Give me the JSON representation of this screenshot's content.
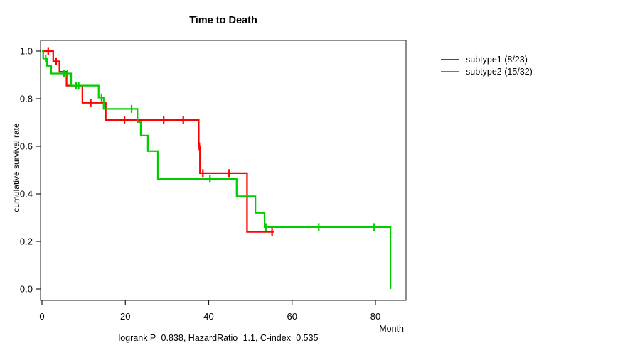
{
  "chart_data": {
    "type": "line",
    "subtype": "kaplan-meier-step-curve",
    "title": "Time to Death",
    "xlabel": "Month",
    "ylabel": "cumulative survival rate",
    "footnote": "logrank P=0.838, HazardRatio=1.1, C-index=0.535",
    "xlim": [
      0,
      87
    ],
    "ylim": [
      0.0,
      1.0
    ],
    "xticks": [
      "0",
      "20",
      "40",
      "60",
      "80"
    ],
    "yticks": [
      "1.0",
      "0.8",
      "0.6",
      "0.4",
      "0.2",
      "0.0"
    ],
    "grid": false,
    "legend_position": "right-outside",
    "axis_color": "#444444",
    "tick_color": "#1a1a1a",
    "text_color": "#000000",
    "background": "#ffffff",
    "series": [
      {
        "id": "subtype1",
        "label": "subtype1 (8/23)",
        "events_over_n": "8/23",
        "color": "#ff0000",
        "steps": [
          [
            0,
            1.0
          ],
          [
            2.7,
            0.957
          ],
          [
            4.2,
            0.913
          ],
          [
            5.9,
            0.855
          ],
          [
            9.7,
            0.783
          ],
          [
            15.3,
            0.71
          ],
          [
            37.6,
            0.6
          ],
          [
            37.9,
            0.487
          ],
          [
            49.2,
            0.24
          ]
        ],
        "end_time": 55.6,
        "censors": [
          [
            1.5,
            1.0
          ],
          [
            3.4,
            0.957
          ],
          [
            11.7,
            0.783
          ],
          [
            19.8,
            0.71
          ],
          [
            29.2,
            0.71
          ],
          [
            33.9,
            0.71
          ],
          [
            37.75,
            0.6
          ],
          [
            38.6,
            0.487
          ],
          [
            44.9,
            0.487
          ],
          [
            55.2,
            0.24
          ]
        ]
      },
      {
        "id": "subtype2",
        "label": "subtype2 (15/32)",
        "events_over_n": "15/32",
        "color": "#00cd00",
        "steps": [
          [
            0,
            1.0
          ],
          [
            0.3,
            0.969
          ],
          [
            1.2,
            0.938
          ],
          [
            2.2,
            0.906
          ],
          [
            7.0,
            0.855
          ],
          [
            13.6,
            0.805
          ],
          [
            14.8,
            0.757
          ],
          [
            22.9,
            0.702
          ],
          [
            23.7,
            0.645
          ],
          [
            25.4,
            0.58
          ],
          [
            27.8,
            0.463
          ],
          [
            46.7,
            0.39
          ],
          [
            51.2,
            0.32
          ],
          [
            53.4,
            0.26
          ],
          [
            83.6,
            0.0
          ]
        ],
        "end_time": 83.6,
        "censors": [
          [
            0.9,
            0.969
          ],
          [
            5.3,
            0.906
          ],
          [
            6.1,
            0.906
          ],
          [
            8.2,
            0.855
          ],
          [
            8.8,
            0.855
          ],
          [
            14.3,
            0.805
          ],
          [
            21.5,
            0.757
          ],
          [
            40.3,
            0.463
          ],
          [
            53.7,
            0.26
          ],
          [
            66.4,
            0.26
          ],
          [
            79.7,
            0.26
          ]
        ]
      }
    ]
  }
}
